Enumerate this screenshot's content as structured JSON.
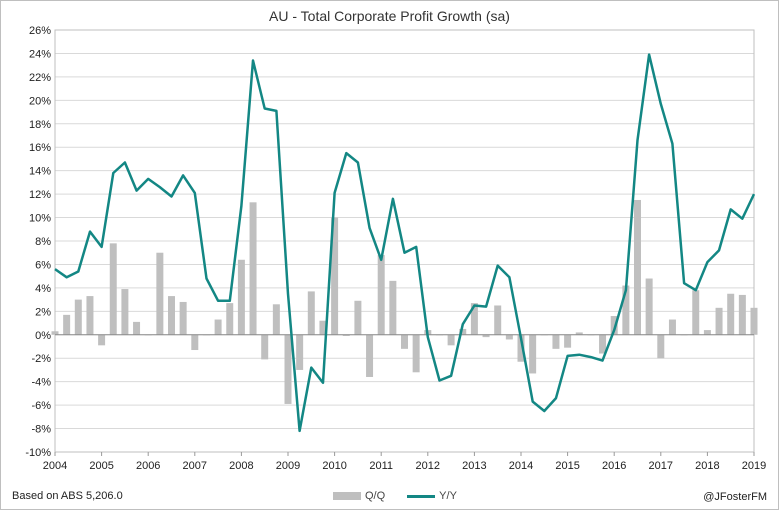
{
  "chart_data": {
    "type": "bar+line",
    "title": "AU - Total Corporate Profit Growth (sa)",
    "x_ticks": [
      "2004",
      "2005",
      "2006",
      "2007",
      "2008",
      "2009",
      "2010",
      "2011",
      "2012",
      "2013",
      "2014",
      "2015",
      "2016",
      "2017",
      "2018",
      "2019"
    ],
    "y_ticks": [
      "-10%",
      "-8%",
      "-6%",
      "-4%",
      "-2%",
      "0%",
      "2%",
      "4%",
      "6%",
      "8%",
      "10%",
      "12%",
      "14%",
      "16%",
      "18%",
      "20%",
      "22%",
      "24%",
      "26%"
    ],
    "ylim": [
      -10,
      26
    ],
    "xlim": [
      2004.0,
      2019.0
    ],
    "categories": [
      "2004Q1",
      "2004Q2",
      "2004Q3",
      "2004Q4",
      "2005Q1",
      "2005Q2",
      "2005Q3",
      "2005Q4",
      "2006Q1",
      "2006Q2",
      "2006Q3",
      "2006Q4",
      "2007Q1",
      "2007Q2",
      "2007Q3",
      "2007Q4",
      "2008Q1",
      "2008Q2",
      "2008Q3",
      "2008Q4",
      "2009Q1",
      "2009Q2",
      "2009Q3",
      "2009Q4",
      "2010Q1",
      "2010Q2",
      "2010Q3",
      "2010Q4",
      "2011Q1",
      "2011Q2",
      "2011Q3",
      "2011Q4",
      "2012Q1",
      "2012Q2",
      "2012Q3",
      "2012Q4",
      "2013Q1",
      "2013Q2",
      "2013Q3",
      "2013Q4",
      "2014Q1",
      "2014Q2",
      "2014Q3",
      "2014Q4",
      "2015Q1",
      "2015Q2",
      "2015Q3",
      "2015Q4",
      "2016Q1",
      "2016Q2",
      "2016Q3",
      "2016Q4",
      "2017Q1",
      "2017Q2",
      "2017Q3",
      "2017Q4",
      "2018Q1",
      "2018Q2",
      "2018Q3",
      "2018Q4",
      "2019Q1"
    ],
    "series": [
      {
        "name": "Q/Q",
        "type": "bar",
        "color": "#bfbfbf",
        "values": [
          0.3,
          1.7,
          3.0,
          3.3,
          -0.9,
          7.8,
          3.9,
          1.1,
          0.0,
          7.0,
          3.3,
          2.8,
          -1.3,
          0.0,
          1.3,
          2.7,
          6.4,
          11.3,
          -2.1,
          2.6,
          -5.9,
          -3.0,
          3.7,
          1.2,
          10.0,
          -0.1,
          2.9,
          -3.6,
          6.8,
          4.6,
          -1.2,
          -3.2,
          0.4,
          0.0,
          -0.9,
          0.5,
          2.7,
          -0.2,
          2.5,
          -0.4,
          -2.3,
          -3.3,
          0.0,
          -1.2,
          -1.1,
          0.2,
          0.0,
          -1.6,
          1.6,
          4.2,
          11.5,
          4.8,
          -2.0,
          1.3,
          0.0,
          3.8,
          0.4,
          2.3,
          3.5,
          3.4,
          2.3
        ]
      },
      {
        "name": "Y/Y",
        "type": "line",
        "color": "#138784",
        "values": [
          5.6,
          4.9,
          5.4,
          8.8,
          7.5,
          13.8,
          14.7,
          12.3,
          13.3,
          12.6,
          11.8,
          13.6,
          12.1,
          4.8,
          2.9,
          2.9,
          11.0,
          23.4,
          19.3,
          19.1,
          3.5,
          -8.2,
          -2.8,
          -4.1,
          12.1,
          15.5,
          14.7,
          9.1,
          6.4,
          11.6,
          7.0,
          7.5,
          -0.2,
          -3.9,
          -3.5,
          0.9,
          2.5,
          2.4,
          5.9,
          4.9,
          -0.3,
          -5.7,
          -6.5,
          -5.4,
          -1.8,
          -1.7,
          -1.9,
          -2.2,
          0.4,
          3.8,
          16.6,
          23.9,
          19.7,
          16.3,
          4.4,
          3.8,
          6.2,
          7.2,
          10.7,
          9.9,
          12.0
        ]
      }
    ],
    "legend": [
      "Q/Q",
      "Y/Y"
    ],
    "legend_placement": "bottom-center"
  },
  "footer": {
    "source": "Based on ABS 5,206.0",
    "credit": "@JFosterFM"
  }
}
